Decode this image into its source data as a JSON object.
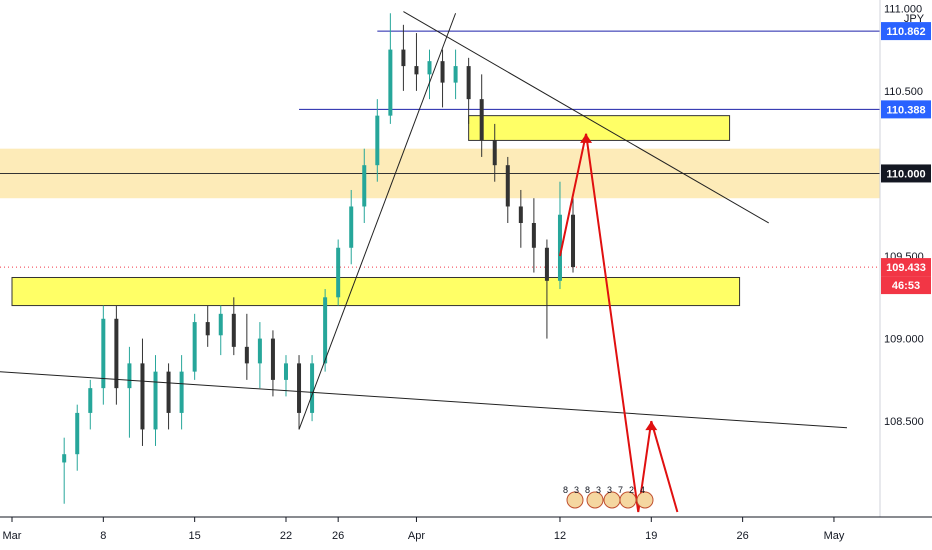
{
  "symbol_unit": "JPY",
  "colors": {
    "up": "#26a69a",
    "down": "#333333",
    "zone_yellow": "#ffff66",
    "zone_orange": "#fde9b0",
    "blue_level": "#1e22aa",
    "arrow_red": "#e01010",
    "tag_blue": "#2962ff",
    "tag_black": "#131722",
    "tag_red": "#f23645"
  },
  "price_scale": {
    "ticks": [
      "111.000",
      "110.500",
      "110.000",
      "109.500",
      "109.000",
      "108.500"
    ],
    "tags": {
      "upper_level": "110.862",
      "blue_level": "110.388",
      "key_level": "110.000",
      "last_price": "109.433",
      "countdown": "46:53"
    }
  },
  "time_axis": {
    "ticks": [
      {
        "label": "Mar",
        "date": "2021-03-01"
      },
      {
        "label": "8",
        "date": "2021-03-08"
      },
      {
        "label": "15",
        "date": "2021-03-15"
      },
      {
        "label": "22",
        "date": "2021-03-22"
      },
      {
        "label": "26",
        "date": "2021-03-26"
      },
      {
        "label": "Apr",
        "date": "2021-04-01"
      },
      {
        "label": "12",
        "date": "2021-04-12"
      },
      {
        "label": "19",
        "date": "2021-04-19"
      },
      {
        "label": "26",
        "date": "2021-04-26"
      },
      {
        "label": "May",
        "date": "2021-05-03"
      }
    ]
  },
  "event_flags": {
    "labels": [
      "8",
      "3",
      "8",
      "3",
      "3",
      "7",
      "2",
      "4"
    ]
  },
  "chart_data": {
    "type": "candlestick",
    "ylim": [
      107.95,
      111.02
    ],
    "xlim": [
      "2021-03-01",
      "2021-05-04"
    ],
    "last_price": 109.433,
    "horizontal_levels": [
      110.862,
      110.388,
      110.0
    ],
    "zones": [
      {
        "from": "2021-03-01",
        "to": "2021-04-30",
        "low": 109.85,
        "high": 110.15
      },
      {
        "from": "2021-04-05",
        "to": "2021-04-25",
        "low": 110.2,
        "high": 110.35
      },
      {
        "from": "2021-03-01",
        "to": "2021-04-25",
        "low": 109.2,
        "high": 109.37
      }
    ],
    "trendlines": [
      {
        "from": [
          "2021-03-23",
          108.45
        ],
        "to": [
          "2021-04-04",
          110.97
        ]
      },
      {
        "from": [
          "2021-03-31",
          110.98
        ],
        "to": [
          "2021-04-28",
          109.7
        ]
      },
      {
        "from": [
          "2021-02-28",
          108.8
        ],
        "to": [
          "2021-05-04",
          108.46
        ]
      }
    ],
    "projection_path": [
      [
        "2021-04-12",
        109.5
      ],
      [
        "2021-04-14",
        110.24
      ],
      [
        "2021-04-18",
        107.95
      ],
      [
        "2021-04-19",
        108.5
      ],
      [
        "2021-04-21",
        107.95
      ]
    ],
    "candles": [
      {
        "d": "2021-03-05",
        "o": 108.25,
        "h": 108.4,
        "l": 108.0,
        "c": 108.3
      },
      {
        "d": "2021-03-06",
        "o": 108.3,
        "h": 108.6,
        "l": 108.2,
        "c": 108.55
      },
      {
        "d": "2021-03-07",
        "o": 108.55,
        "h": 108.75,
        "l": 108.45,
        "c": 108.7
      },
      {
        "d": "2021-03-08",
        "o": 108.7,
        "h": 109.2,
        "l": 108.6,
        "c": 109.12
      },
      {
        "d": "2021-03-09",
        "o": 109.12,
        "h": 109.2,
        "l": 108.6,
        "c": 108.7
      },
      {
        "d": "2021-03-10",
        "o": 108.7,
        "h": 108.95,
        "l": 108.4,
        "c": 108.85
      },
      {
        "d": "2021-03-11",
        "o": 108.85,
        "h": 109.0,
        "l": 108.35,
        "c": 108.45
      },
      {
        "d": "2021-03-12",
        "o": 108.45,
        "h": 108.9,
        "l": 108.35,
        "c": 108.8
      },
      {
        "d": "2021-03-13",
        "o": 108.8,
        "h": 108.85,
        "l": 108.45,
        "c": 108.55
      },
      {
        "d": "2021-03-14",
        "o": 108.55,
        "h": 108.9,
        "l": 108.45,
        "c": 108.8
      },
      {
        "d": "2021-03-15",
        "o": 108.8,
        "h": 109.15,
        "l": 108.75,
        "c": 109.1
      },
      {
        "d": "2021-03-16",
        "o": 109.1,
        "h": 109.2,
        "l": 108.95,
        "c": 109.02
      },
      {
        "d": "2021-03-17",
        "o": 109.02,
        "h": 109.2,
        "l": 108.9,
        "c": 109.15
      },
      {
        "d": "2021-03-18",
        "o": 109.15,
        "h": 109.25,
        "l": 108.9,
        "c": 108.95
      },
      {
        "d": "2021-03-19",
        "o": 108.95,
        "h": 109.15,
        "l": 108.75,
        "c": 108.85
      },
      {
        "d": "2021-03-20",
        "o": 108.85,
        "h": 109.1,
        "l": 108.7,
        "c": 109.0
      },
      {
        "d": "2021-03-21",
        "o": 109.0,
        "h": 109.05,
        "l": 108.65,
        "c": 108.75
      },
      {
        "d": "2021-03-22",
        "o": 108.75,
        "h": 108.9,
        "l": 108.65,
        "c": 108.85
      },
      {
        "d": "2021-03-23",
        "o": 108.85,
        "h": 108.9,
        "l": 108.45,
        "c": 108.55
      },
      {
        "d": "2021-03-24",
        "o": 108.55,
        "h": 108.9,
        "l": 108.5,
        "c": 108.85
      },
      {
        "d": "2021-03-25",
        "o": 108.85,
        "h": 109.3,
        "l": 108.8,
        "c": 109.25
      },
      {
        "d": "2021-03-26",
        "o": 109.25,
        "h": 109.6,
        "l": 109.2,
        "c": 109.55
      },
      {
        "d": "2021-03-27",
        "o": 109.55,
        "h": 109.9,
        "l": 109.45,
        "c": 109.8
      },
      {
        "d": "2021-03-28",
        "o": 109.8,
        "h": 110.15,
        "l": 109.7,
        "c": 110.05
      },
      {
        "d": "2021-03-29",
        "o": 110.05,
        "h": 110.45,
        "l": 109.95,
        "c": 110.35
      },
      {
        "d": "2021-03-30",
        "o": 110.35,
        "h": 110.97,
        "l": 110.3,
        "c": 110.75
      },
      {
        "d": "2021-03-31",
        "o": 110.75,
        "h": 110.9,
        "l": 110.5,
        "c": 110.65
      },
      {
        "d": "2021-04-01",
        "o": 110.65,
        "h": 110.85,
        "l": 110.5,
        "c": 110.6
      },
      {
        "d": "2021-04-02",
        "o": 110.6,
        "h": 110.75,
        "l": 110.45,
        "c": 110.68
      },
      {
        "d": "2021-04-03",
        "o": 110.68,
        "h": 110.75,
        "l": 110.4,
        "c": 110.55
      },
      {
        "d": "2021-04-04",
        "o": 110.55,
        "h": 110.75,
        "l": 110.45,
        "c": 110.65
      },
      {
        "d": "2021-04-05",
        "o": 110.65,
        "h": 110.7,
        "l": 110.3,
        "c": 110.45
      },
      {
        "d": "2021-04-06",
        "o": 110.45,
        "h": 110.6,
        "l": 110.1,
        "c": 110.2
      },
      {
        "d": "2021-04-07",
        "o": 110.2,
        "h": 110.3,
        "l": 109.95,
        "c": 110.05
      },
      {
        "d": "2021-04-08",
        "o": 110.05,
        "h": 110.1,
        "l": 109.7,
        "c": 109.8
      },
      {
        "d": "2021-04-09",
        "o": 109.8,
        "h": 109.9,
        "l": 109.55,
        "c": 109.7
      },
      {
        "d": "2021-04-10",
        "o": 109.7,
        "h": 109.85,
        "l": 109.4,
        "c": 109.55
      },
      {
        "d": "2021-04-11",
        "o": 109.55,
        "h": 109.6,
        "l": 109.0,
        "c": 109.35
      },
      {
        "d": "2021-04-12",
        "o": 109.35,
        "h": 109.95,
        "l": 109.3,
        "c": 109.75
      },
      {
        "d": "2021-04-13",
        "o": 109.75,
        "h": 109.85,
        "l": 109.4,
        "c": 109.433
      }
    ]
  }
}
